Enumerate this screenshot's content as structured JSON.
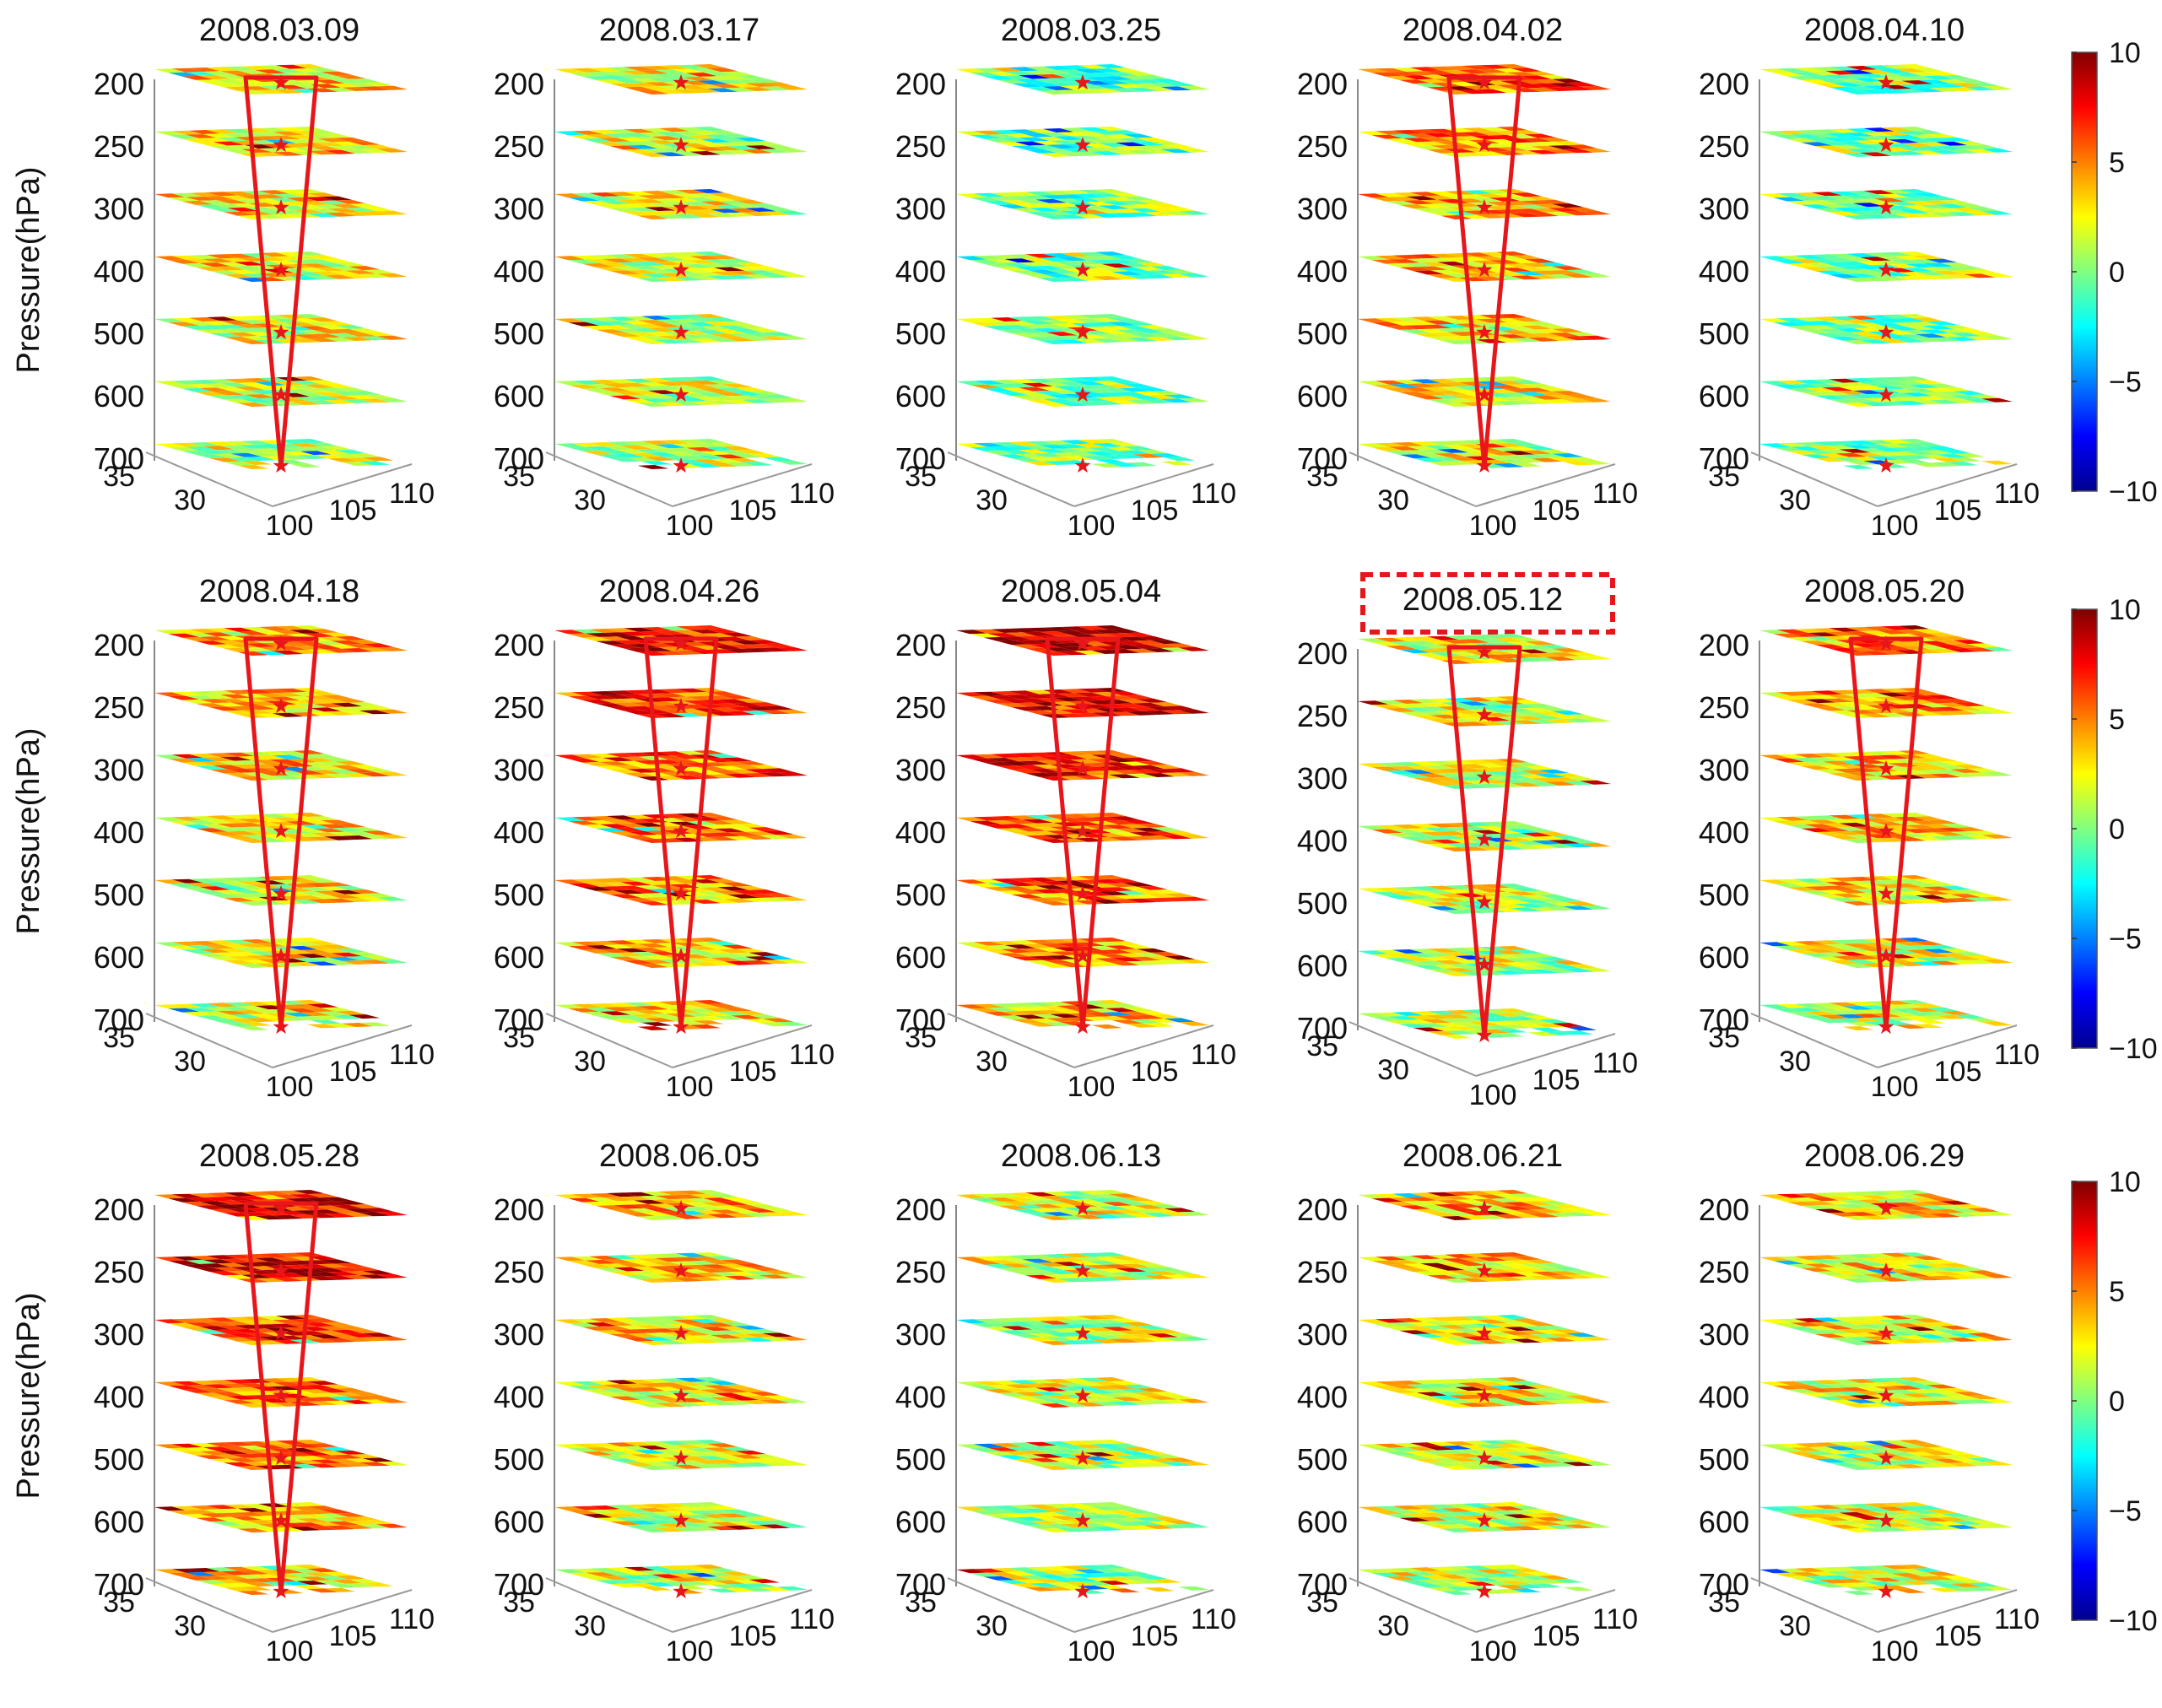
{
  "figure": {
    "y_axis_label": "Pressure(hPa)",
    "levels": [
      "200",
      "250",
      "300",
      "400",
      "500",
      "600",
      "700"
    ],
    "x_ticks": [
      "100",
      "105",
      "110"
    ],
    "y_ticks": [
      "35",
      "30"
    ],
    "colorbar": {
      "ticks": [
        "10",
        "5",
        "0",
        "−5",
        "−10"
      ],
      "range": [
        -10,
        10
      ],
      "colormap": "jet",
      "colors": [
        "#00008f",
        "#0000ff",
        "#00ffff",
        "#80ff80",
        "#ffff00",
        "#ff8000",
        "#ff0000",
        "#800000"
      ]
    },
    "highlight_color": "#e8161a"
  },
  "chart_data": {
    "type": "heatmap",
    "description_of_panels": "3D stacked horizontal slices at 7 pressure levels per date",
    "z_levels_hPa": [
      200,
      250,
      300,
      400,
      500,
      600,
      700
    ],
    "x_axis": {
      "ticks": [
        100,
        105,
        110
      ]
    },
    "y_axis": {
      "ticks": [
        30,
        35
      ]
    },
    "color_range": [
      -10,
      10
    ],
    "panels": [
      {
        "date": "2008.03.09",
        "cone": true,
        "intensity": 0.3
      },
      {
        "date": "2008.03.17",
        "cone": false,
        "intensity": 0.2
      },
      {
        "date": "2008.03.25",
        "cone": false,
        "intensity": -0.1
      },
      {
        "date": "2008.04.02",
        "cone": true,
        "intensity": 0.5
      },
      {
        "date": "2008.04.10",
        "cone": false,
        "intensity": 0.0
      },
      {
        "date": "2008.04.18",
        "cone": true,
        "intensity": 0.4
      },
      {
        "date": "2008.04.26",
        "cone": true,
        "intensity": 0.7
      },
      {
        "date": "2008.05.04",
        "cone": true,
        "intensity": 0.85
      },
      {
        "date": "2008.05.12",
        "cone": true,
        "intensity": 0.2,
        "highlighted": true
      },
      {
        "date": "2008.05.20",
        "cone": true,
        "intensity": 0.45
      },
      {
        "date": "2008.05.28",
        "cone": true,
        "intensity": 0.8
      },
      {
        "date": "2008.06.05",
        "cone": false,
        "intensity": 0.35
      },
      {
        "date": "2008.06.13",
        "cone": false,
        "intensity": 0.15
      },
      {
        "date": "2008.06.21",
        "cone": false,
        "intensity": 0.35
      },
      {
        "date": "2008.06.29",
        "cone": false,
        "intensity": 0.3
      }
    ]
  }
}
